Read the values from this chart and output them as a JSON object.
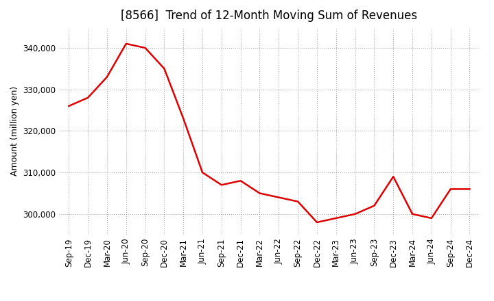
{
  "title": "[8566]  Trend of 12-Month Moving Sum of Revenues",
  "ylabel": "Amount (million yen)",
  "x_labels": [
    "Sep-19",
    "Dec-19",
    "Mar-20",
    "Jun-20",
    "Sep-20",
    "Dec-20",
    "Mar-21",
    "Jun-21",
    "Sep-21",
    "Dec-21",
    "Mar-22",
    "Jun-22",
    "Sep-22",
    "Dec-22",
    "Mar-23",
    "Jun-23",
    "Sep-23",
    "Dec-23",
    "Mar-24",
    "Jun-24",
    "Sep-24",
    "Dec-24"
  ],
  "values": [
    326000,
    328000,
    333000,
    341000,
    340000,
    335000,
    323000,
    310000,
    307000,
    308000,
    305000,
    304000,
    303000,
    298000,
    299000,
    300000,
    302000,
    309000,
    300000,
    299000,
    306000,
    306000
  ],
  "line_color": "#dd0000",
  "bg_color": "#ffffff",
  "grid_color": "#aaaaaa",
  "ylim_min": 295000,
  "ylim_max": 345000,
  "yticks": [
    300000,
    310000,
    320000,
    330000,
    340000
  ],
  "title_fontsize": 12,
  "label_fontsize": 9,
  "tick_fontsize": 8.5
}
